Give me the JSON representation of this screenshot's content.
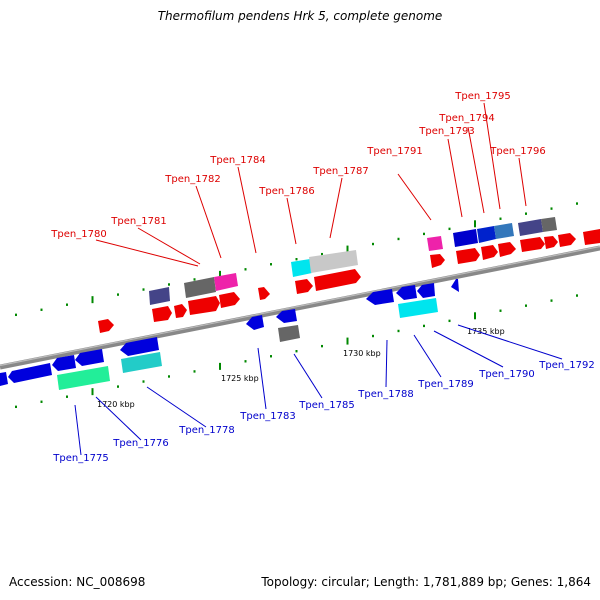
{
  "title": "Thermofilum pendens Hrk 5, complete genome",
  "footer": {
    "accession": "Accession: NC_008698",
    "summary": "Topology: circular; Length: 1,781,889 bp; Genes: 1,864"
  },
  "colors": {
    "forward_label": "#dd0000",
    "reverse_label": "#0000cc",
    "backbone": "#888888",
    "tick": "#008800"
  },
  "scale_labels": [
    "1720 kbp",
    "1725 kbp",
    "1730 kbp",
    "1735 kbp"
  ],
  "forward_genes": [
    "Tpen_1780",
    "Tpen_1781",
    "Tpen_1782",
    "Tpen_1784",
    "Tpen_1786",
    "Tpen_1787",
    "Tpen_1791",
    "Tpen_1793",
    "Tpen_1794",
    "Tpen_1795",
    "Tpen_1796"
  ],
  "reverse_genes": [
    "Tpen_1775",
    "Tpen_1776",
    "Tpen_1778",
    "Tpen_1783",
    "Tpen_1785",
    "Tpen_1788",
    "Tpen_1789",
    "Tpen_1790",
    "Tpen_1792"
  ]
}
